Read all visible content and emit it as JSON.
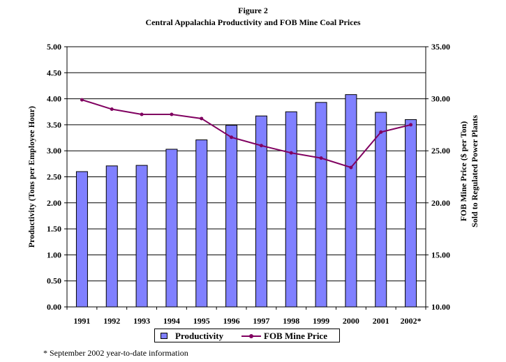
{
  "figure_label": "Figure 2",
  "chart_data": {
    "type": "bar+line",
    "title": "Central Appalachia Productivity and FOB Mine Coal Prices",
    "categories": [
      "1991",
      "1992",
      "1993",
      "1994",
      "1995",
      "1996",
      "1997",
      "1998",
      "1999",
      "2000",
      "2001",
      "2002*"
    ],
    "series": [
      {
        "name": "Productivity",
        "type": "bar",
        "axis": "left",
        "color": "#8080ff",
        "values": [
          2.6,
          2.71,
          2.72,
          3.03,
          3.21,
          3.49,
          3.67,
          3.75,
          3.93,
          4.08,
          3.74,
          3.6
        ]
      },
      {
        "name": "FOB Mine Price",
        "type": "line",
        "axis": "right",
        "color": "#800060",
        "values": [
          29.9,
          29.0,
          28.5,
          28.5,
          28.1,
          26.3,
          25.5,
          24.8,
          24.3,
          23.4,
          26.8,
          27.5
        ]
      }
    ],
    "y_left": {
      "label": "Productivity (Tons per Employee Hour)",
      "lim": [
        0,
        5
      ],
      "ticks": [
        "0.00",
        "0.50",
        "1.00",
        "1.50",
        "2.00",
        "2.50",
        "3.00",
        "3.50",
        "4.00",
        "4.50",
        "5.00"
      ]
    },
    "y_right": {
      "label_line1": "FOB Mine Price ($ per Ton)",
      "label_line2": "Sold to Regulated Power Plants",
      "lim": [
        10,
        35
      ],
      "ticks": [
        "10.00",
        "15.00",
        "20.00",
        "25.00",
        "30.00",
        "35.00"
      ]
    },
    "grid": true,
    "legend_position": "bottom"
  },
  "legend": {
    "productivity_label": "Productivity",
    "price_label": "FOB Mine Price"
  },
  "footnote": "* September 2002 year-to-date information"
}
